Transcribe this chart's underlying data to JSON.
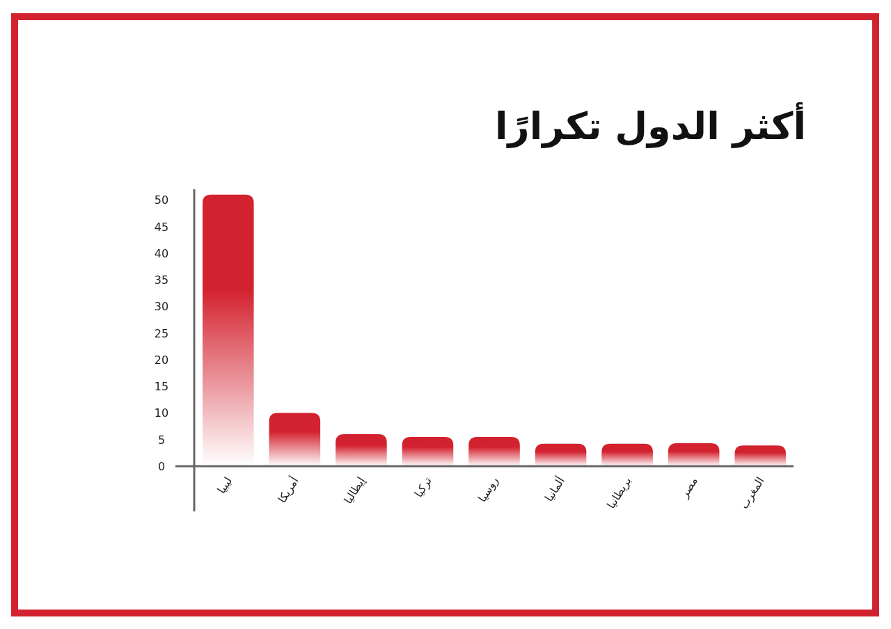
{
  "chart_data": {
    "type": "bar",
    "title": "أكثر الدول تكرارًا",
    "categories": [
      "ليبيا",
      "أمريكا",
      "إيطاليا",
      "تركيا",
      "روسيا",
      "ألمانيا",
      "بريطانيا",
      "مصر",
      "المغرب"
    ],
    "values": [
      51,
      10,
      6,
      5.5,
      5.5,
      4.2,
      4.2,
      4.3,
      3.9
    ],
    "color": "#d3222f",
    "ylim": [
      0,
      52
    ],
    "yticks": [
      0,
      5,
      10,
      15,
      20,
      25,
      30,
      35,
      40,
      45,
      50
    ]
  }
}
